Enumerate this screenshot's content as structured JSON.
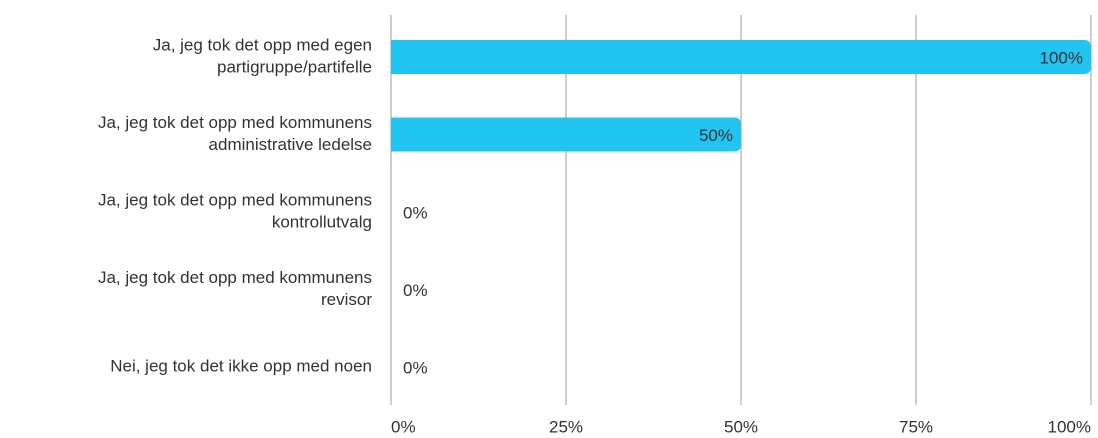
{
  "chart_data": {
    "type": "barh",
    "categories": [
      [
        "Ja, jeg tok det opp med egen",
        "partigruppe/partifelle"
      ],
      [
        "Ja, jeg tok det opp med kommunens",
        "administrative ledelse"
      ],
      [
        "Ja, jeg tok det opp med kommunens",
        "kontrollutvalg"
      ],
      [
        "Ja, jeg tok det opp med kommunens",
        "revisor"
      ],
      [
        "Nei, jeg tok det ikke opp med noen"
      ]
    ],
    "values": [
      100,
      50,
      0,
      0,
      0
    ],
    "value_labels": [
      "100%",
      "50%",
      "0%",
      "0%",
      "0%"
    ],
    "color": "#22c4f2",
    "xlim": [
      0,
      100
    ],
    "xticks": [
      {
        "value": 0,
        "label": "0%"
      },
      {
        "value": 25,
        "label": "25%"
      },
      {
        "value": 50,
        "label": "50%"
      },
      {
        "value": 75,
        "label": "75%"
      },
      {
        "value": 100,
        "label": "100%"
      }
    ],
    "grid": true
  }
}
